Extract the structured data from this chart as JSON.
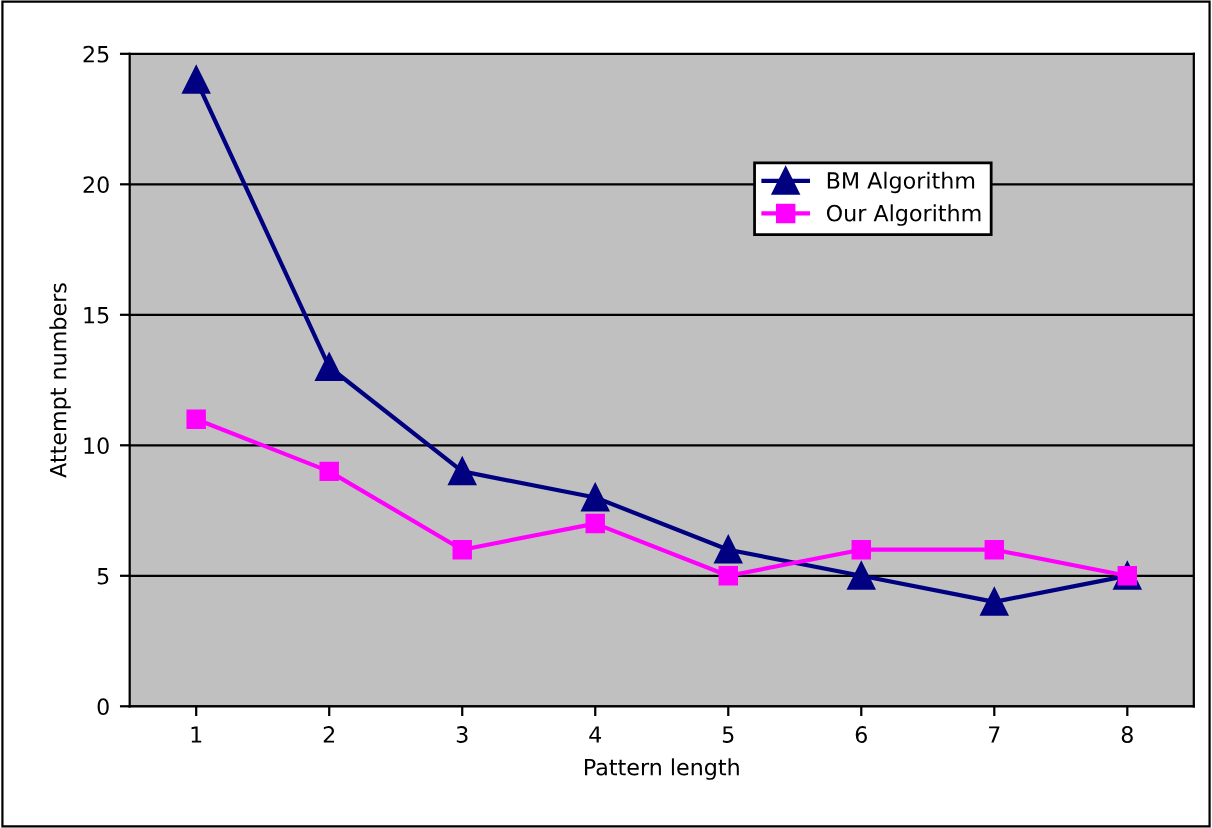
{
  "chart_data": {
    "type": "line",
    "xlabel": "Pattern length",
    "ylabel": "Attempt numbers",
    "categories": [
      "1",
      "2",
      "3",
      "4",
      "5",
      "6",
      "7",
      "8"
    ],
    "series": [
      {
        "name": "BM Algorithm",
        "color": "#000080",
        "marker": "triangle",
        "values": [
          24,
          13,
          9,
          8,
          6,
          5,
          4,
          5
        ]
      },
      {
        "name": "Our Algorithm",
        "color": "#ff00ff",
        "marker": "square",
        "values": [
          11,
          9,
          6,
          7,
          5,
          6,
          6,
          5
        ]
      }
    ],
    "ylim": [
      0,
      25
    ],
    "yticks": [
      0,
      5,
      10,
      15,
      20,
      25
    ],
    "grid": "y",
    "legend": "top right",
    "line_style": "solid"
  }
}
